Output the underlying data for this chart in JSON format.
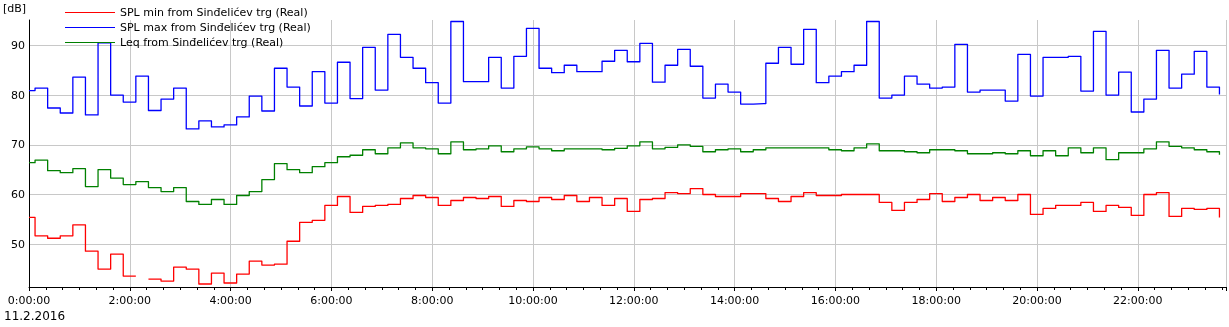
{
  "chart_data": {
    "type": "step",
    "ylabel": "[dB]",
    "annotations": [
      "11.2.2016"
    ],
    "x": [
      0,
      0.12,
      0.37,
      0.62,
      0.87,
      1.12,
      1.37,
      1.62,
      1.87,
      2.12,
      2.37,
      2.62,
      2.87,
      3.12,
      3.37,
      3.62,
      3.87,
      4.12,
      4.37,
      4.62,
      4.87,
      5.12,
      5.37,
      5.62,
      5.87,
      6.12,
      6.37,
      6.62,
      6.87,
      7.12,
      7.37,
      7.62,
      7.87,
      8.12,
      8.37,
      8.62,
      8.87,
      9.12,
      9.37,
      9.62,
      9.87,
      10.12,
      10.37,
      10.62,
      10.87,
      11.12,
      11.37,
      11.62,
      11.87,
      12.12,
      12.37,
      12.62,
      12.87,
      13.12,
      13.37,
      13.62,
      13.87,
      14.12,
      14.37,
      14.62,
      14.87,
      15.12,
      15.37,
      15.62,
      15.87,
      16.12,
      16.37,
      16.62,
      16.87,
      17.12,
      17.37,
      17.62,
      17.87,
      18.12,
      18.37,
      18.62,
      18.87,
      19.12,
      19.37,
      19.62,
      19.87,
      20.12,
      20.37,
      20.62,
      20.87,
      21.12,
      21.37,
      21.62,
      21.87,
      22.12,
      22.37,
      22.62,
      22.87,
      23.12,
      23.37,
      23.62
    ],
    "series": [
      {
        "name": "SPL min from Sinđelićev trg (Real)",
        "color": "#ff0000",
        "values": [
          55.4,
          51.7,
          51.2,
          51.7,
          53.9,
          48.6,
          45.0,
          48.0,
          43.6,
          null,
          43.0,
          42.6,
          45.4,
          45.0,
          42.0,
          44.2,
          42.2,
          44.0,
          46.6,
          45.8,
          46.0,
          50.6,
          54.4,
          54.8,
          57.8,
          59.6,
          56.4,
          57.6,
          57.8,
          58.0,
          59.2,
          59.8,
          59.4,
          57.8,
          58.8,
          59.4,
          59.2,
          59.6,
          57.6,
          58.8,
          58.6,
          59.4,
          59.0,
          59.8,
          58.6,
          59.4,
          57.8,
          59.2,
          56.6,
          59.0,
          59.2,
          60.4,
          60.2,
          61.2,
          60.0,
          59.6,
          59.6,
          60.2,
          60.2,
          59.2,
          58.6,
          59.6,
          60.4,
          59.8,
          59.8,
          60.0,
          60.0,
          60.0,
          58.4,
          56.8,
          58.4,
          59.0,
          60.2,
          58.6,
          59.4,
          60.0,
          58.8,
          59.4,
          58.8,
          60.0,
          56.0,
          57.2,
          57.8,
          57.8,
          58.4,
          56.6,
          57.8,
          57.4,
          55.8,
          60.0,
          60.4,
          55.6,
          57.2,
          57.0,
          57.2,
          55.4
        ]
      },
      {
        "name": "SPL max from Sinđelićev trg (Real)",
        "color": "#0000ff",
        "values": [
          80.9,
          81.4,
          77.4,
          76.4,
          83.6,
          76.0,
          90.5,
          80.0,
          78.6,
          83.8,
          76.9,
          79.2,
          81.4,
          73.2,
          74.8,
          73.6,
          74.0,
          75.6,
          79.8,
          76.8,
          85.4,
          81.6,
          77.8,
          84.7,
          78.4,
          86.6,
          79.3,
          89.6,
          81.0,
          92.2,
          87.6,
          85.4,
          82.5,
          78.4,
          94.8,
          82.7,
          82.7,
          87.6,
          81.4,
          87.8,
          93.4,
          85.4,
          84.5,
          86.0,
          84.7,
          84.7,
          86.8,
          89.0,
          86.7,
          90.4,
          82.6,
          86.0,
          89.2,
          85.8,
          79.4,
          82.2,
          80.6,
          78.2,
          78.3,
          86.4,
          89.6,
          86.2,
          93.2,
          82.5,
          83.8,
          84.7,
          86.0,
          94.8,
          79.4,
          80.0,
          83.8,
          82.2,
          81.4,
          81.6,
          90.2,
          80.6,
          81.0,
          81.0,
          78.8,
          88.2,
          79.8,
          87.6,
          87.6,
          87.8,
          80.8,
          92.8,
          80.0,
          84.6,
          76.6,
          79.2,
          89.0,
          81.4,
          84.2,
          88.8,
          81.6,
          80.1
        ]
      },
      {
        "name": "Leq from Sinđelićev trg (Real)",
        "color": "#008000",
        "values": [
          66.4,
          66.9,
          64.8,
          64.4,
          65.2,
          61.6,
          65.0,
          63.3,
          62.0,
          62.6,
          61.4,
          60.6,
          61.4,
          58.6,
          58.0,
          59.0,
          58.0,
          59.8,
          60.6,
          63.0,
          66.2,
          65.0,
          64.4,
          65.6,
          66.4,
          67.6,
          67.9,
          69.0,
          68.2,
          69.4,
          70.4,
          69.4,
          69.2,
          68.2,
          70.6,
          69.0,
          69.2,
          69.8,
          68.6,
          69.2,
          69.6,
          69.2,
          68.8,
          69.2,
          69.2,
          69.2,
          69.0,
          69.3,
          69.8,
          70.6,
          69.2,
          69.5,
          70.0,
          69.7,
          68.6,
          69.0,
          69.2,
          68.6,
          69.0,
          69.4,
          69.4,
          69.4,
          69.4,
          69.4,
          69.0,
          68.8,
          69.4,
          70.2,
          68.8,
          68.8,
          68.6,
          68.4,
          69.0,
          69.0,
          68.8,
          68.2,
          68.2,
          68.4,
          68.2,
          68.8,
          67.8,
          68.8,
          67.8,
          69.4,
          68.4,
          69.4,
          67.0,
          68.4,
          68.4,
          69.2,
          70.6,
          69.7,
          69.4,
          69.0,
          68.6,
          68.0
        ]
      }
    ],
    "xlim": [
      0,
      23.75
    ],
    "xticks": [
      {
        "value": 0,
        "label": "0:00:00"
      },
      {
        "value": 2,
        "label": "2:00:00"
      },
      {
        "value": 4,
        "label": "4:00:00"
      },
      {
        "value": 6,
        "label": "6:00:00"
      },
      {
        "value": 8,
        "label": "8:00:00"
      },
      {
        "value": 10,
        "label": "10:00:00"
      },
      {
        "value": 12,
        "label": "12:00:00"
      },
      {
        "value": 14,
        "label": "14:00:00"
      },
      {
        "value": 16,
        "label": "16:00:00"
      },
      {
        "value": 18,
        "label": "18:00:00"
      },
      {
        "value": 20,
        "label": "20:00:00"
      },
      {
        "value": 22,
        "label": "22:00:00"
      }
    ],
    "ylim": [
      41.4,
      95.1
    ],
    "yticks": [
      50,
      60,
      70,
      80,
      90
    ],
    "grid": true,
    "legend": "top left",
    "line_style": "solid"
  }
}
